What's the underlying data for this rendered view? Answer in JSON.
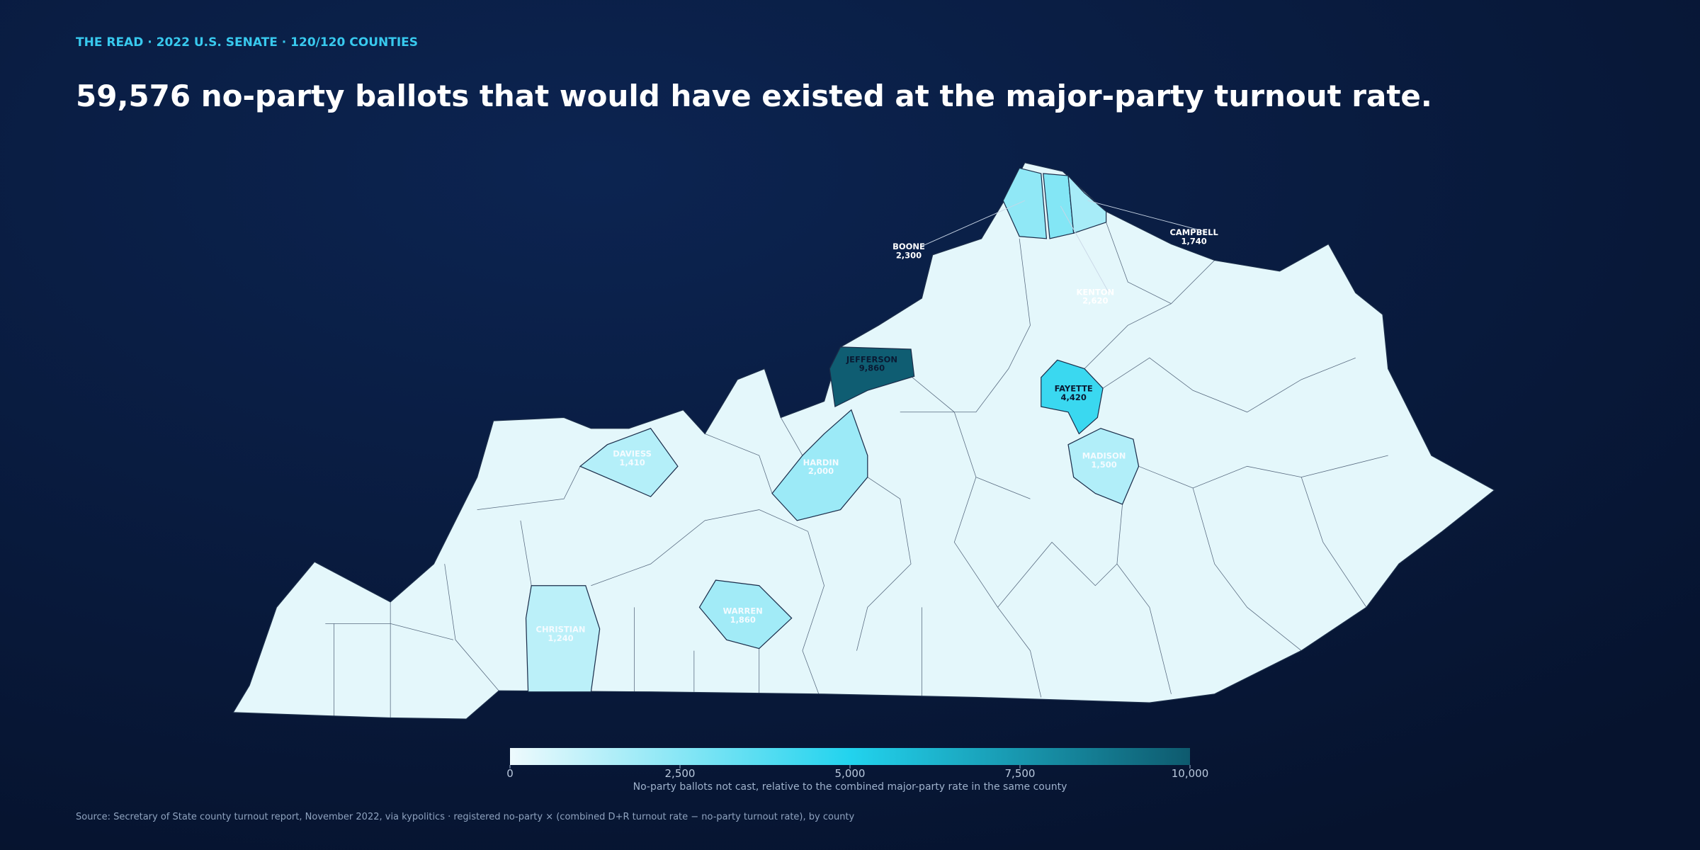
{
  "chart_data": {
    "type": "choropleth",
    "kicker": "THE READ · 2022 U.S. SENATE · 120/120 COUNTIES",
    "title": "59,576 no-party ballots that would have existed at the major-party turnout rate.",
    "regions": [
      "BOONE",
      "KENTON",
      "CAMPBELL",
      "JEFFERSON",
      "FAYETTE",
      "MADISON",
      "HARDIN",
      "DAVIESS",
      "WARREN",
      "CHRISTIAN"
    ],
    "values": [
      2300,
      2620,
      1740,
      9860,
      4420,
      1500,
      2000,
      1410,
      1860,
      1240
    ],
    "value_labels": [
      "2,300",
      "2,620",
      "1,740",
      "9,860",
      "4,420",
      "1,500",
      "2,000",
      "1,410",
      "1,860",
      "1,240"
    ],
    "colors": [
      "#eefafd",
      "#22d3ee",
      "#0e5a6e"
    ],
    "clim": [
      0,
      10000
    ],
    "cticks": [
      0,
      {
        "value": 2500,
        "label": "2,500"
      },
      {
        "value": 5000,
        "label": "5,000"
      },
      {
        "value": 7500,
        "label": "7,500"
      },
      {
        "value": 10000,
        "label": "10,000"
      }
    ],
    "colorbar_label": "No-party ballots not cast, relative to the combined major-party rate in the same county",
    "source": "Source: Secretary of State county turnout report, November 2022, via kypolitics · registered no-party × (combined D+R turnout rate − no-party turnout rate), by county"
  }
}
